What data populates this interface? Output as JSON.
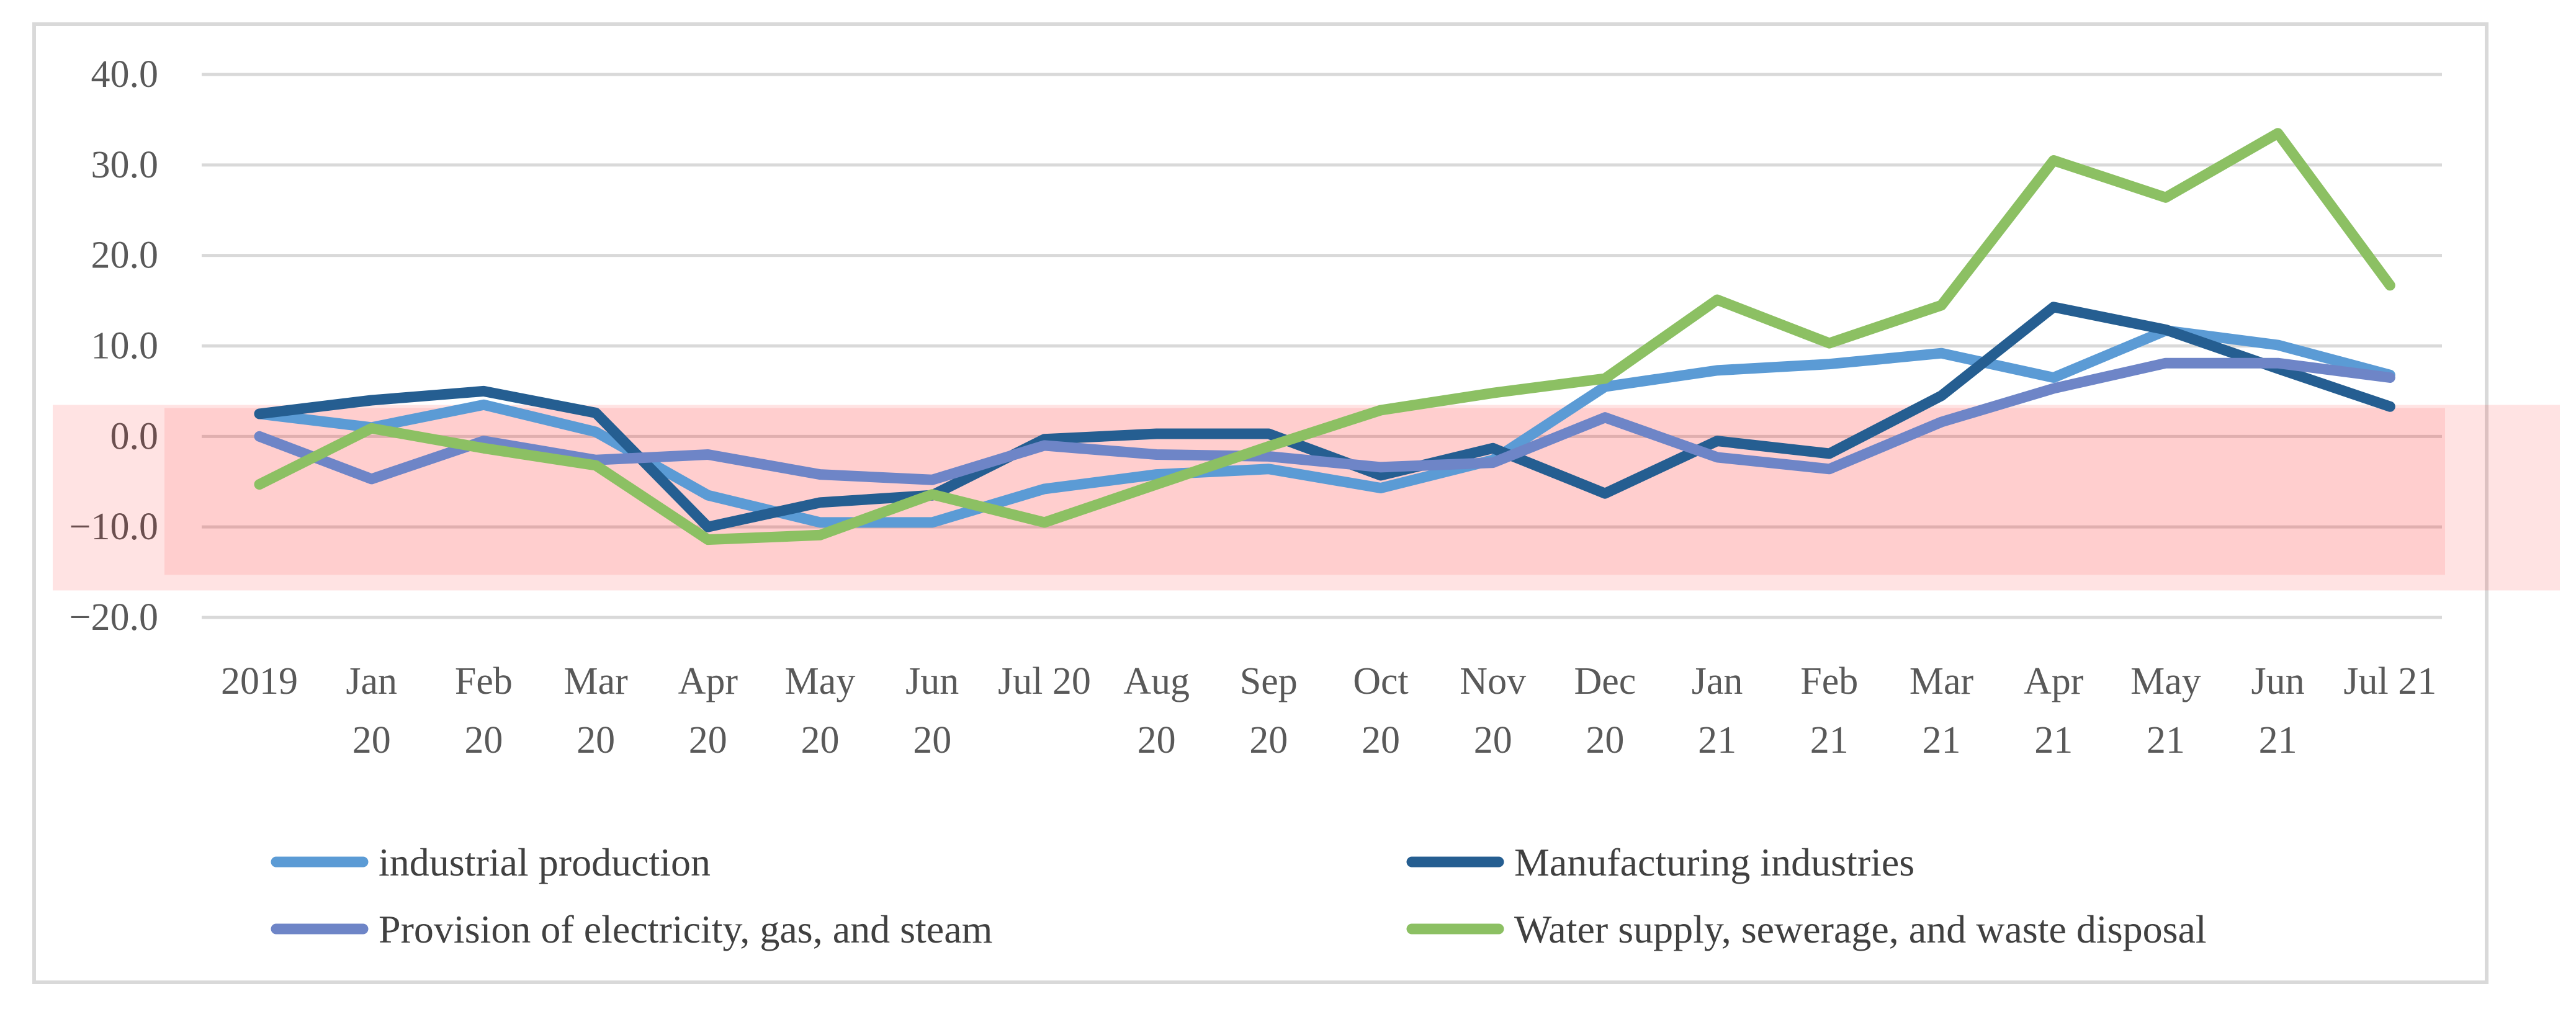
{
  "chart_data": {
    "type": "line",
    "title": "",
    "xlabel": "",
    "ylabel": "",
    "ylim": [
      -20,
      40
    ],
    "yticks": [
      "40.0",
      "30.0",
      "20.0",
      "10.0",
      "0.0",
      "−10.0",
      "−20.0"
    ],
    "grid": true,
    "legend_position": "bottom",
    "categories": [
      [
        "2019"
      ],
      [
        "Jan",
        "20"
      ],
      [
        "Feb",
        "20"
      ],
      [
        "Mar",
        "20"
      ],
      [
        "Apr",
        "20"
      ],
      [
        "May",
        "20"
      ],
      [
        "Jun",
        "20"
      ],
      [
        "Jul 20"
      ],
      [
        "Aug",
        "20"
      ],
      [
        "Sep",
        "20"
      ],
      [
        "Oct",
        "20"
      ],
      [
        "Nov",
        "20"
      ],
      [
        "Dec",
        "20"
      ],
      [
        "Jan",
        "21"
      ],
      [
        "Feb",
        "21"
      ],
      [
        "Mar",
        "21"
      ],
      [
        "Apr",
        "21"
      ],
      [
        "May",
        "21"
      ],
      [
        "Jun",
        "21"
      ],
      [
        "Jul 21"
      ]
    ],
    "series": [
      {
        "name": "industrial production",
        "color": "#5B9BD5",
        "values": [
          2.5,
          1.0,
          3.5,
          0.5,
          -6.5,
          -9.5,
          -9.5,
          -5.8,
          -4.2,
          -3.6,
          -5.7,
          -2.6,
          5.5,
          7.3,
          8.0,
          9.2,
          6.5,
          11.7,
          10.1,
          6.8
        ]
      },
      {
        "name": "Manufacturing industries",
        "color": "#255E91",
        "values": [
          2.5,
          4.0,
          5.0,
          2.6,
          -10.0,
          -7.3,
          -6.5,
          -0.3,
          0.3,
          0.3,
          -4.3,
          -1.3,
          -6.3,
          -0.5,
          -1.9,
          4.5,
          14.3,
          11.8,
          7.5,
          3.3
        ]
      },
      {
        "name": "Provision of electricity, gas, and steam",
        "color": "#6E85C7",
        "values": [
          0.0,
          -4.7,
          -0.5,
          -2.6,
          -2.0,
          -4.2,
          -4.8,
          -1.0,
          -2.0,
          -2.2,
          -3.4,
          -2.9,
          2.1,
          -2.3,
          -3.6,
          1.6,
          5.3,
          8.1,
          8.1,
          6.5
        ]
      },
      {
        "name": "Water supply, sewerage, and waste disposal",
        "color": "#8CC063",
        "values": [
          -5.3,
          0.9,
          -1.3,
          -3.2,
          -11.4,
          -10.9,
          -6.4,
          -9.5,
          -5.3,
          -1.1,
          2.9,
          4.8,
          6.4,
          15.1,
          10.3,
          14.5,
          30.5,
          26.4,
          33.5,
          16.7
        ]
      }
    ],
    "highlight_band": {
      "y_from": -10.5,
      "y_to": 2.8,
      "color": "#FF0000"
    }
  }
}
